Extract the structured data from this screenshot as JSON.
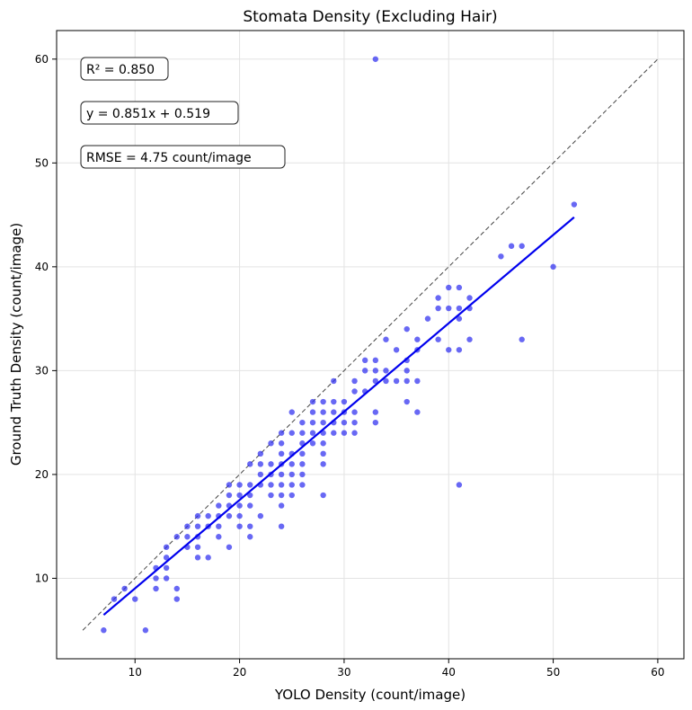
{
  "chart_data": {
    "type": "scatter",
    "title": "Stomata Density (Excluding Hair)",
    "xlabel": "YOLO Density (count/image)",
    "ylabel": "Ground Truth Density (count/image)",
    "xlim": [
      2.5,
      62.5
    ],
    "ylim": [
      2.25,
      62.75
    ],
    "xticks": [
      "10",
      "20",
      "30",
      "40",
      "50",
      "60"
    ],
    "yticks": [
      "10",
      "20",
      "30",
      "40",
      "50",
      "60"
    ],
    "grid": true,
    "annotations": {
      "r2": "R² = 0.850",
      "equation": "y = 0.851x + 0.519",
      "rmse": "RMSE = 4.75 count/image"
    },
    "fit": {
      "slope": 0.851,
      "intercept": 0.519,
      "x_range": [
        7,
        52
      ]
    },
    "identity_line": {
      "x_range": [
        5,
        60
      ]
    },
    "colors": {
      "points": "#2e2ef0",
      "fit": "#0000ee",
      "identity": "#444444"
    },
    "points": [
      [
        7,
        5
      ],
      [
        8,
        8
      ],
      [
        9,
        9
      ],
      [
        10,
        8
      ],
      [
        11,
        5
      ],
      [
        12,
        9
      ],
      [
        12,
        10
      ],
      [
        12,
        11
      ],
      [
        13,
        10
      ],
      [
        13,
        11
      ],
      [
        13,
        12
      ],
      [
        13,
        13
      ],
      [
        14,
        8
      ],
      [
        14,
        9
      ],
      [
        14,
        14
      ],
      [
        15,
        13
      ],
      [
        15,
        14
      ],
      [
        15,
        15
      ],
      [
        16,
        12
      ],
      [
        16,
        13
      ],
      [
        16,
        14
      ],
      [
        16,
        15
      ],
      [
        16,
        16
      ],
      [
        17,
        12
      ],
      [
        17,
        15
      ],
      [
        17,
        16
      ],
      [
        18,
        14
      ],
      [
        18,
        15
      ],
      [
        18,
        16
      ],
      [
        18,
        17
      ],
      [
        19,
        13
      ],
      [
        19,
        16
      ],
      [
        19,
        17
      ],
      [
        19,
        18
      ],
      [
        19,
        19
      ],
      [
        20,
        15
      ],
      [
        20,
        16
      ],
      [
        20,
        17
      ],
      [
        20,
        18
      ],
      [
        20,
        19
      ],
      [
        21,
        14
      ],
      [
        21,
        15
      ],
      [
        21,
        17
      ],
      [
        21,
        18
      ],
      [
        21,
        19
      ],
      [
        21,
        21
      ],
      [
        22,
        16
      ],
      [
        22,
        19
      ],
      [
        22,
        20
      ],
      [
        22,
        21
      ],
      [
        22,
        22
      ],
      [
        23,
        18
      ],
      [
        23,
        19
      ],
      [
        23,
        20
      ],
      [
        23,
        21
      ],
      [
        23,
        23
      ],
      [
        24,
        15
      ],
      [
        24,
        17
      ],
      [
        24,
        18
      ],
      [
        24,
        19
      ],
      [
        24,
        20
      ],
      [
        24,
        21
      ],
      [
        24,
        22
      ],
      [
        24,
        23
      ],
      [
        24,
        24
      ],
      [
        25,
        18
      ],
      [
        25,
        19
      ],
      [
        25,
        20
      ],
      [
        25,
        21
      ],
      [
        25,
        22
      ],
      [
        25,
        24
      ],
      [
        25,
        26
      ],
      [
        26,
        19
      ],
      [
        26,
        20
      ],
      [
        26,
        21
      ],
      [
        26,
        22
      ],
      [
        26,
        23
      ],
      [
        26,
        24
      ],
      [
        26,
        25
      ],
      [
        27,
        23
      ],
      [
        27,
        24
      ],
      [
        27,
        25
      ],
      [
        27,
        26
      ],
      [
        27,
        27
      ],
      [
        28,
        18
      ],
      [
        28,
        21
      ],
      [
        28,
        22
      ],
      [
        28,
        23
      ],
      [
        28,
        24
      ],
      [
        28,
        25
      ],
      [
        28,
        26
      ],
      [
        28,
        27
      ],
      [
        29,
        24
      ],
      [
        29,
        25
      ],
      [
        29,
        26
      ],
      [
        29,
        27
      ],
      [
        29,
        29
      ],
      [
        30,
        24
      ],
      [
        30,
        25
      ],
      [
        30,
        26
      ],
      [
        30,
        27
      ],
      [
        31,
        24
      ],
      [
        31,
        25
      ],
      [
        31,
        26
      ],
      [
        31,
        28
      ],
      [
        31,
        29
      ],
      [
        32,
        28
      ],
      [
        32,
        30
      ],
      [
        32,
        31
      ],
      [
        33,
        25
      ],
      [
        33,
        26
      ],
      [
        33,
        29
      ],
      [
        33,
        30
      ],
      [
        33,
        31
      ],
      [
        33,
        60
      ],
      [
        34,
        29
      ],
      [
        34,
        30
      ],
      [
        34,
        33
      ],
      [
        35,
        29
      ],
      [
        35,
        32
      ],
      [
        36,
        27
      ],
      [
        36,
        29
      ],
      [
        36,
        30
      ],
      [
        36,
        31
      ],
      [
        36,
        34
      ],
      [
        37,
        26
      ],
      [
        37,
        29
      ],
      [
        37,
        32
      ],
      [
        37,
        33
      ],
      [
        38,
        35
      ],
      [
        39,
        33
      ],
      [
        39,
        36
      ],
      [
        39,
        37
      ],
      [
        40,
        32
      ],
      [
        40,
        36
      ],
      [
        40,
        38
      ],
      [
        41,
        19
      ],
      [
        41,
        32
      ],
      [
        41,
        35
      ],
      [
        41,
        36
      ],
      [
        41,
        38
      ],
      [
        42,
        33
      ],
      [
        42,
        36
      ],
      [
        42,
        37
      ],
      [
        45,
        41
      ],
      [
        46,
        42
      ],
      [
        47,
        33
      ],
      [
        47,
        42
      ],
      [
        50,
        40
      ],
      [
        52,
        46
      ]
    ]
  }
}
